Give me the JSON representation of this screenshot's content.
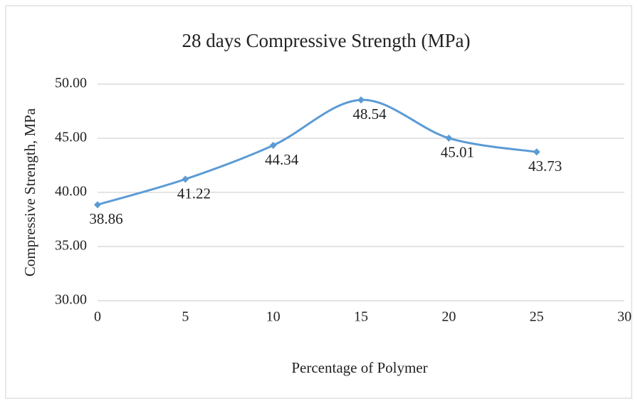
{
  "chart_data": {
    "type": "line",
    "title": "28 days Compressive Strength (MPa)",
    "x_label": "Percentage of Polymer",
    "y_label": "Compressive Strength, MPa",
    "x": [
      0,
      5,
      10,
      15,
      20,
      25
    ],
    "series": [
      {
        "name": "Compressive Strength",
        "color": "#5b9bd5",
        "values": [
          38.86,
          41.22,
          44.34,
          48.54,
          45.01,
          43.73
        ]
      }
    ],
    "xlim": [
      0,
      30
    ],
    "xticks": [
      0,
      5,
      10,
      15,
      20,
      25,
      30
    ],
    "ylim": [
      30,
      50
    ],
    "yticks": [
      {
        "value": 30,
        "label": "30.00"
      },
      {
        "value": 35,
        "label": "35.00"
      },
      {
        "value": 40,
        "label": "40.00"
      },
      {
        "value": 45,
        "label": "45.00"
      },
      {
        "value": 50,
        "label": "50.00"
      }
    ],
    "grid": true,
    "smooth": true
  }
}
